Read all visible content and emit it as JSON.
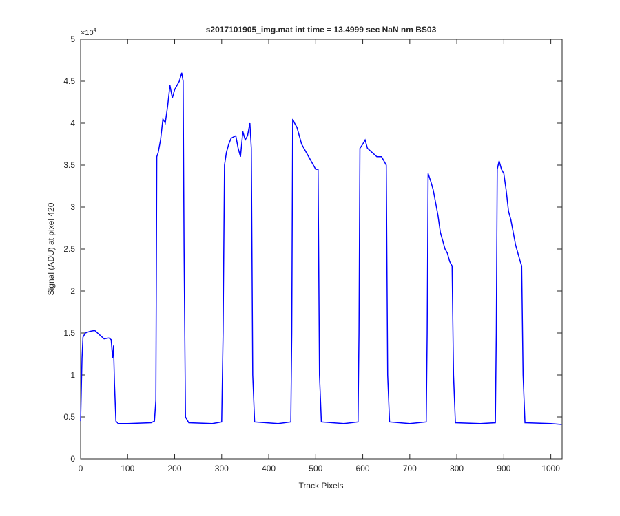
{
  "chart_data": {
    "type": "line",
    "title": "s2017101905_img.mat int time = 13.4999 sec  NaN nm BS03",
    "x_label": "Track Pixels",
    "y_label": "Signal (ADU) at pixel 420",
    "y_multiplier": {
      "base": "×10",
      "exponent": "4"
    },
    "xlim": [
      0,
      1024
    ],
    "ylim": [
      0,
      5
    ],
    "xticks": [
      0,
      100,
      200,
      300,
      400,
      500,
      600,
      700,
      800,
      900,
      1000
    ],
    "yticks": [
      0,
      0.5,
      1,
      1.5,
      2,
      2.5,
      3,
      3.5,
      4,
      4.5,
      5
    ],
    "grid": false,
    "box": true,
    "x": [
      0,
      3,
      5,
      10,
      20,
      30,
      40,
      50,
      60,
      65,
      68,
      70,
      72,
      75,
      80,
      100,
      150,
      157,
      160,
      162,
      165,
      170,
      175,
      180,
      185,
      190,
      195,
      200,
      205,
      210,
      215,
      218,
      220,
      223,
      230,
      280,
      300,
      303,
      306,
      310,
      315,
      320,
      330,
      335,
      340,
      345,
      350,
      355,
      360,
      363,
      366,
      370,
      420,
      447,
      449,
      451,
      455,
      460,
      465,
      470,
      475,
      480,
      485,
      490,
      495,
      500,
      505,
      508,
      512,
      560,
      590,
      592,
      594,
      600,
      605,
      610,
      620,
      630,
      640,
      645,
      650,
      653,
      657,
      700,
      735,
      737,
      739,
      745,
      750,
      755,
      760,
      765,
      770,
      775,
      780,
      785,
      790,
      793,
      797,
      850,
      882,
      884,
      886,
      890,
      895,
      900,
      905,
      910,
      915,
      920,
      925,
      930,
      935,
      938,
      941,
      945,
      1000,
      1023
    ],
    "series": [
      {
        "name": "signal",
        "color": "#0000ff",
        "values": [
          0.45,
          1.2,
          1.45,
          1.5,
          1.52,
          1.53,
          1.48,
          1.43,
          1.44,
          1.42,
          1.2,
          1.35,
          0.9,
          0.45,
          0.42,
          0.42,
          0.43,
          0.45,
          0.7,
          3.6,
          3.65,
          3.8,
          4.05,
          4.0,
          4.2,
          4.45,
          4.3,
          4.4,
          4.45,
          4.5,
          4.6,
          4.5,
          2.5,
          0.5,
          0.43,
          0.42,
          0.44,
          1.5,
          3.5,
          3.65,
          3.75,
          3.82,
          3.85,
          3.7,
          3.6,
          3.9,
          3.8,
          3.85,
          4.0,
          3.7,
          1.0,
          0.44,
          0.42,
          0.44,
          1.5,
          4.05,
          4.0,
          3.95,
          3.85,
          3.75,
          3.7,
          3.65,
          3.6,
          3.55,
          3.5,
          3.45,
          3.45,
          1.0,
          0.44,
          0.42,
          0.44,
          1.5,
          3.7,
          3.75,
          3.8,
          3.7,
          3.65,
          3.6,
          3.6,
          3.55,
          3.5,
          1.0,
          0.44,
          0.42,
          0.44,
          1.5,
          3.4,
          3.3,
          3.2,
          3.05,
          2.9,
          2.7,
          2.6,
          2.5,
          2.45,
          2.35,
          2.3,
          1.0,
          0.43,
          0.42,
          0.43,
          1.5,
          3.45,
          3.55,
          3.45,
          3.4,
          3.2,
          2.95,
          2.85,
          2.7,
          2.55,
          2.45,
          2.35,
          2.3,
          1.0,
          0.43,
          0.42,
          0.41
        ]
      }
    ]
  }
}
